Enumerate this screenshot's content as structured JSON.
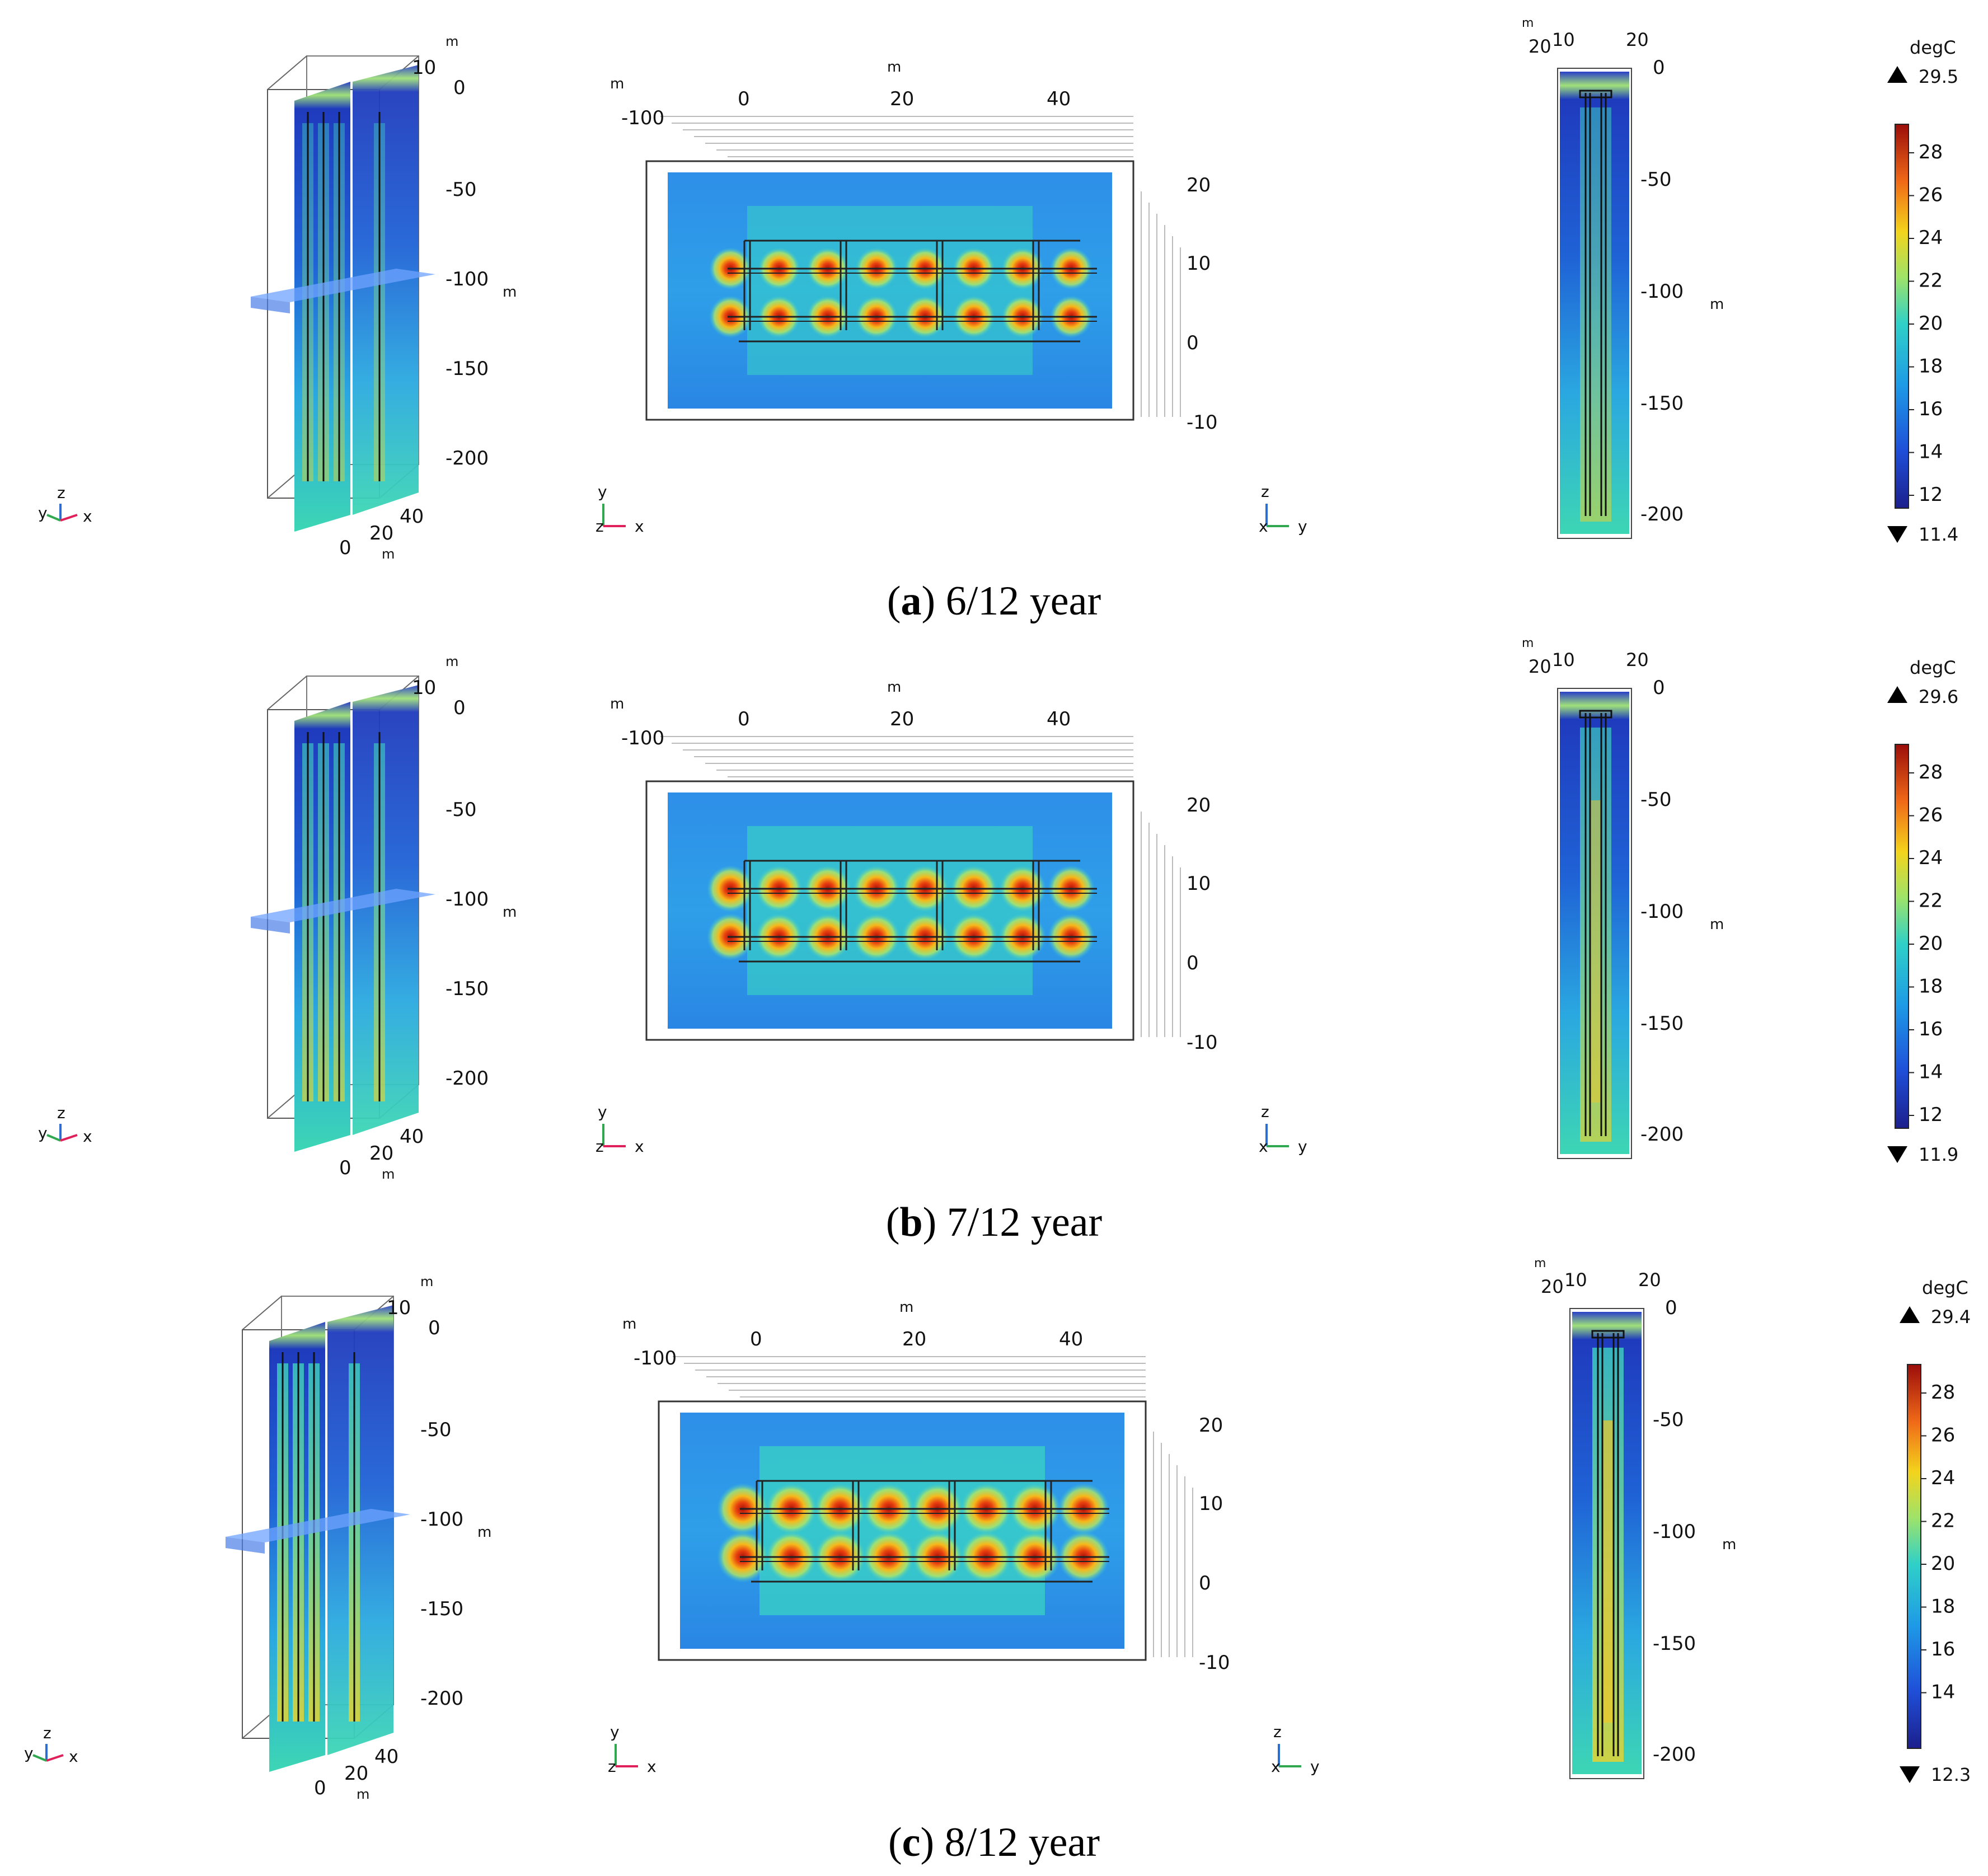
{
  "panels": [
    {
      "letter": "a",
      "caption_text": " 6/12 year",
      "iso": {
        "unit_top": "m",
        "ticks": [
          "10",
          "0",
          "-50",
          "-100",
          "-150",
          "-200",
          "40",
          "20",
          "0"
        ],
        "unit_side": "m",
        "unit_bottom": "m"
      },
      "top": {
        "unit_a": "m",
        "unit_b": "m",
        "x_ticks": [
          "-100",
          "0",
          "20",
          "40"
        ],
        "y_ticks": [
          "20",
          "10",
          "0",
          "-10"
        ]
      },
      "side": {
        "unit": "m",
        "top_ticks": [
          "20",
          "10",
          "20"
        ],
        "z_ticks": [
          "0",
          "-50",
          "-100",
          "-150",
          "-200"
        ],
        "unit_z": "m"
      },
      "colorbar": {
        "unit": "degC",
        "max_label": "29.5",
        "min_label": "11.4",
        "ticks": [
          "28",
          "26",
          "24",
          "22",
          "20",
          "18",
          "16",
          "14",
          "12"
        ]
      },
      "triads": {
        "iso": [
          "y",
          "z",
          "x"
        ],
        "top": [
          "y",
          "z",
          "x"
        ],
        "side": [
          "z",
          "x",
          "y"
        ]
      }
    },
    {
      "letter": "b",
      "caption_text": " 7/12 year",
      "iso": {
        "unit_top": "m",
        "ticks": [
          "10",
          "0",
          "-50",
          "-100",
          "-150",
          "-200",
          "40",
          "20",
          "0"
        ],
        "unit_side": "m",
        "unit_bottom": "m"
      },
      "top": {
        "unit_a": "m",
        "unit_b": "m",
        "x_ticks": [
          "-100",
          "0",
          "20",
          "40"
        ],
        "y_ticks": [
          "20",
          "10",
          "0",
          "-10"
        ]
      },
      "side": {
        "unit": "m",
        "top_ticks": [
          "20",
          "10",
          "20"
        ],
        "z_ticks": [
          "0",
          "-50",
          "-100",
          "-150",
          "-200"
        ],
        "unit_z": "m"
      },
      "colorbar": {
        "unit": "degC",
        "max_label": "29.6",
        "min_label": "11.9",
        "ticks": [
          "28",
          "26",
          "24",
          "22",
          "20",
          "18",
          "16",
          "14",
          "12"
        ]
      },
      "triads": {
        "iso": [
          "y",
          "z",
          "x"
        ],
        "top": [
          "y",
          "z",
          "x"
        ],
        "side": [
          "z",
          "x",
          "y"
        ]
      }
    },
    {
      "letter": "c",
      "caption_text": " 8/12 year",
      "iso": {
        "unit_top": "m",
        "ticks": [
          "10",
          "0",
          "-50",
          "-100",
          "-150",
          "-200",
          "40",
          "20",
          "0"
        ],
        "unit_side": "m",
        "unit_bottom": "m"
      },
      "top": {
        "unit_a": "m",
        "unit_b": "m",
        "x_ticks": [
          "-100",
          "0",
          "20",
          "40"
        ],
        "y_ticks": [
          "20",
          "10",
          "0",
          "-10"
        ]
      },
      "side": {
        "unit": "m",
        "top_ticks": [
          "20",
          "10",
          "20"
        ],
        "z_ticks": [
          "0",
          "-50",
          "-100",
          "-150",
          "-200"
        ],
        "unit_z": "m"
      },
      "colorbar": {
        "unit": "degC",
        "max_label": "29.4",
        "min_label": "12.3",
        "ticks": [
          "28",
          "26",
          "24",
          "22",
          "20",
          "18",
          "16",
          "14"
        ]
      },
      "triads": {
        "iso": [
          "y",
          "z",
          "x"
        ],
        "top": [
          "y",
          "z",
          "x"
        ],
        "side": [
          "z",
          "x",
          "y"
        ]
      }
    }
  ],
  "colors": {
    "cold": "#2336b0",
    "cool": "#1e88e5",
    "mid": "#2ec4c4",
    "mild": "#8ee27a",
    "warm": "#f6d11c",
    "hot": "#f07a18",
    "hottest": "#c0140c",
    "triad_x": "#e0205a",
    "triad_y": "#2fa84f",
    "triad_z": "#2a6fd0"
  }
}
